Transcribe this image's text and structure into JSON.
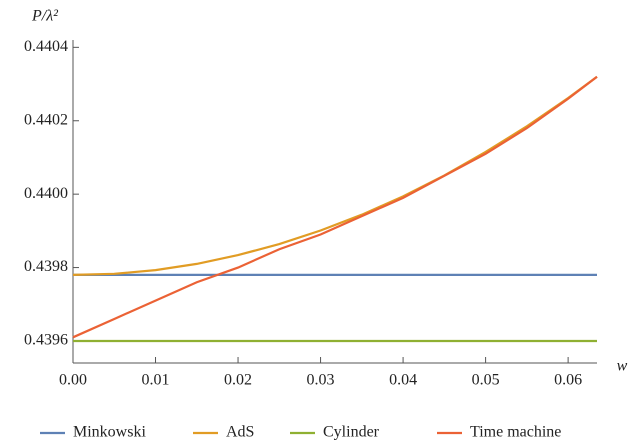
{
  "chart_data": {
    "type": "line",
    "y_label": "P/λ²",
    "x_label": "w",
    "x": [
      0,
      0.005,
      0.01,
      0.015,
      0.02,
      0.025,
      0.03,
      0.035,
      0.04,
      0.045,
      0.05,
      0.055,
      0.06,
      0.0635
    ],
    "series": [
      {
        "name": "Minkowski",
        "color": "#5e81b5",
        "values": [
          0.43978,
          0.43978,
          0.43978,
          0.43978,
          0.43978,
          0.43978,
          0.43978,
          0.43978,
          0.43978,
          0.43978,
          0.43978,
          0.43978,
          0.43978,
          0.43978
        ]
      },
      {
        "name": "AdS",
        "color": "#e19c24",
        "values": [
          0.43978,
          0.439783,
          0.439793,
          0.43981,
          0.439834,
          0.439864,
          0.439901,
          0.439944,
          0.439994,
          0.440051,
          0.440115,
          0.440185,
          0.440262,
          0.44032
        ]
      },
      {
        "name": "Cylinder",
        "color": "#8fb032",
        "values": [
          0.4396,
          0.4396,
          0.4396,
          0.4396,
          0.4396,
          0.4396,
          0.4396,
          0.4396,
          0.4396,
          0.4396,
          0.4396,
          0.4396,
          0.4396,
          0.4396
        ]
      },
      {
        "name": "Time machine",
        "color": "#eb6235",
        "values": [
          0.43961,
          0.43966,
          0.43971,
          0.43976,
          0.4398,
          0.43985,
          0.43989,
          0.43994,
          0.43999,
          0.44005,
          0.44011,
          0.44018,
          0.44026,
          0.44032
        ]
      }
    ],
    "xlim": [
      0,
      0.0635
    ],
    "ylim": [
      0.43954,
      0.44042
    ],
    "xticks": [
      {
        "value": 0,
        "label": "0.00"
      },
      {
        "value": 0.01,
        "label": "0.01"
      },
      {
        "value": 0.02,
        "label": "0.02"
      },
      {
        "value": 0.03,
        "label": "0.03"
      },
      {
        "value": 0.04,
        "label": "0.04"
      },
      {
        "value": 0.05,
        "label": "0.05"
      },
      {
        "value": 0.06,
        "label": "0.06"
      }
    ],
    "yticks": [
      0.4396,
      0.4398,
      {
        "value": 0.44,
        "label": "0.4400"
      },
      0.4402,
      0.4404
    ],
    "legend": "bottom"
  }
}
